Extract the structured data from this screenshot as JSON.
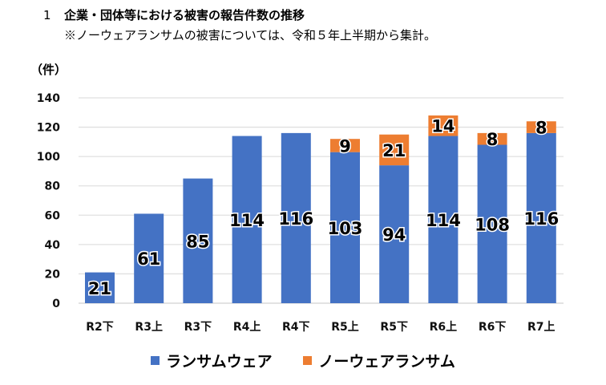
{
  "header": {
    "number": "1",
    "title": "企業・団体等における被害の報告件数の推移",
    "note": "※ノーウェアランサムの被害については、令和５年上半期から集計。"
  },
  "chart_data": {
    "type": "bar",
    "stacked": true,
    "title": "企業・団体等における被害の報告件数の推移",
    "ylabel": "（件）",
    "xlabel": "",
    "ylim": [
      0,
      140
    ],
    "yticks": [
      0,
      20,
      40,
      60,
      80,
      100,
      120,
      140
    ],
    "grid": true,
    "legend_position": "bottom",
    "categories": [
      "R2下",
      "R3上",
      "R3下",
      "R4上",
      "R4下",
      "R5上",
      "R5下",
      "R6上",
      "R6下",
      "R7上"
    ],
    "series": [
      {
        "name": "ランサムウェア",
        "color": "#4472C4",
        "values": [
          21,
          61,
          85,
          114,
          116,
          103,
          94,
          114,
          108,
          116
        ]
      },
      {
        "name": "ノーウェアランサム",
        "color": "#ED7D31",
        "values": [
          null,
          null,
          null,
          null,
          null,
          9,
          21,
          14,
          8,
          8
        ]
      }
    ]
  }
}
